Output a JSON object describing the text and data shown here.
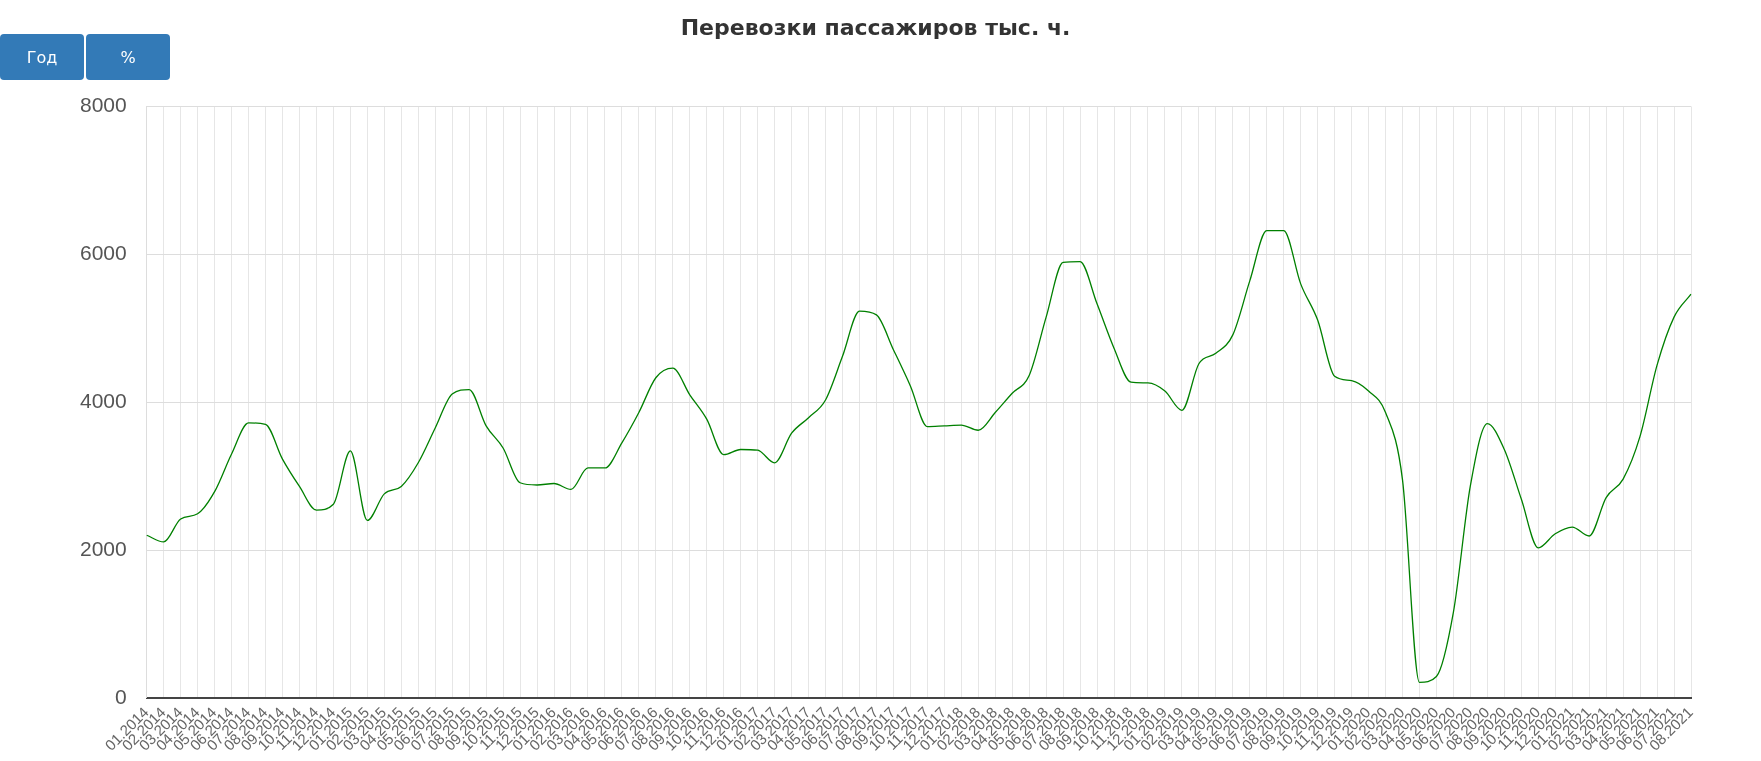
{
  "chart_data": {
    "type": "line",
    "title": "Перевозки пассажиров тыс. ч.",
    "categories": [
      "01.2014",
      "02.2014",
      "03.2014",
      "04.2014",
      "05.2014",
      "06.2014",
      "07.2014",
      "08.2014",
      "09.2014",
      "10.2014",
      "11.2014",
      "12.2014",
      "01.2015",
      "02.2015",
      "03.2015",
      "04.2015",
      "05.2015",
      "06.2015",
      "07.2015",
      "08.2015",
      "09.2015",
      "10.2015",
      "11.2015",
      "12.2015",
      "01.2016",
      "02.2016",
      "03.2016",
      "04.2016",
      "05.2016",
      "06.2016",
      "07.2016",
      "08.2016",
      "09.2016",
      "10.2016",
      "11.2016",
      "12.2016",
      "01.2017",
      "02.2017",
      "03.2017",
      "04.2017",
      "05.2017",
      "06.2017",
      "07.2017",
      "08.2017",
      "09.2017",
      "10.2017",
      "11.2017",
      "12.2017",
      "01.2018",
      "02.2018",
      "03.2018",
      "04.2018",
      "05.2018",
      "06.2018",
      "07.2018",
      "08.2018",
      "09.2018",
      "10.2018",
      "11.2018",
      "12.2018",
      "01.2019",
      "02.2019",
      "03.2019",
      "04.2019",
      "05.2019",
      "06.2019",
      "07.2019",
      "08.2019",
      "09.2019",
      "10.2019",
      "11.2019",
      "12.2019",
      "01.2020",
      "02.2020",
      "03.2020",
      "04.2020",
      "05.2020",
      "06.2020",
      "07.2020",
      "08.2020",
      "09.2020",
      "10.2020",
      "11.2020",
      "12.2020",
      "01.2021",
      "02.2021",
      "03.2021",
      "04.2021",
      "05.2021",
      "06.2021",
      "07.2021",
      "08.2021"
    ],
    "series": [
      {
        "color": "#008000",
        "values": [
          2200,
          2110,
          2420,
          2490,
          2790,
          3300,
          3720,
          3700,
          3230,
          2860,
          2540,
          2620,
          3340,
          2400,
          2760,
          2860,
          3180,
          3650,
          4110,
          4170,
          3680,
          3380,
          2910,
          2880,
          2900,
          2820,
          3110,
          3110,
          3450,
          3860,
          4330,
          4460,
          4100,
          3770,
          3290,
          3360,
          3350,
          3180,
          3580,
          3790,
          4030,
          4620,
          5230,
          5180,
          4710,
          4220,
          3670,
          3680,
          3690,
          3620,
          3860,
          4120,
          4360,
          5150,
          5890,
          5900,
          5330,
          4730,
          4270,
          4260,
          4150,
          3890,
          4520,
          4660,
          4910,
          5640,
          6320,
          6320,
          5600,
          5110,
          4350,
          4290,
          4150,
          3860,
          2950,
          210,
          290,
          1160,
          2870,
          3710,
          3360,
          2690,
          2030,
          2220,
          2310,
          2190,
          2710,
          2960,
          3540,
          4500,
          5150,
          5460
        ]
      }
    ],
    "ylim": [
      0,
      8000
    ],
    "yticks": [
      0,
      2000,
      4000,
      6000,
      8000
    ],
    "grid": true,
    "legend": false,
    "marker": "none",
    "line_style": "solid",
    "annotations": [
      "Год",
      "%"
    ]
  }
}
